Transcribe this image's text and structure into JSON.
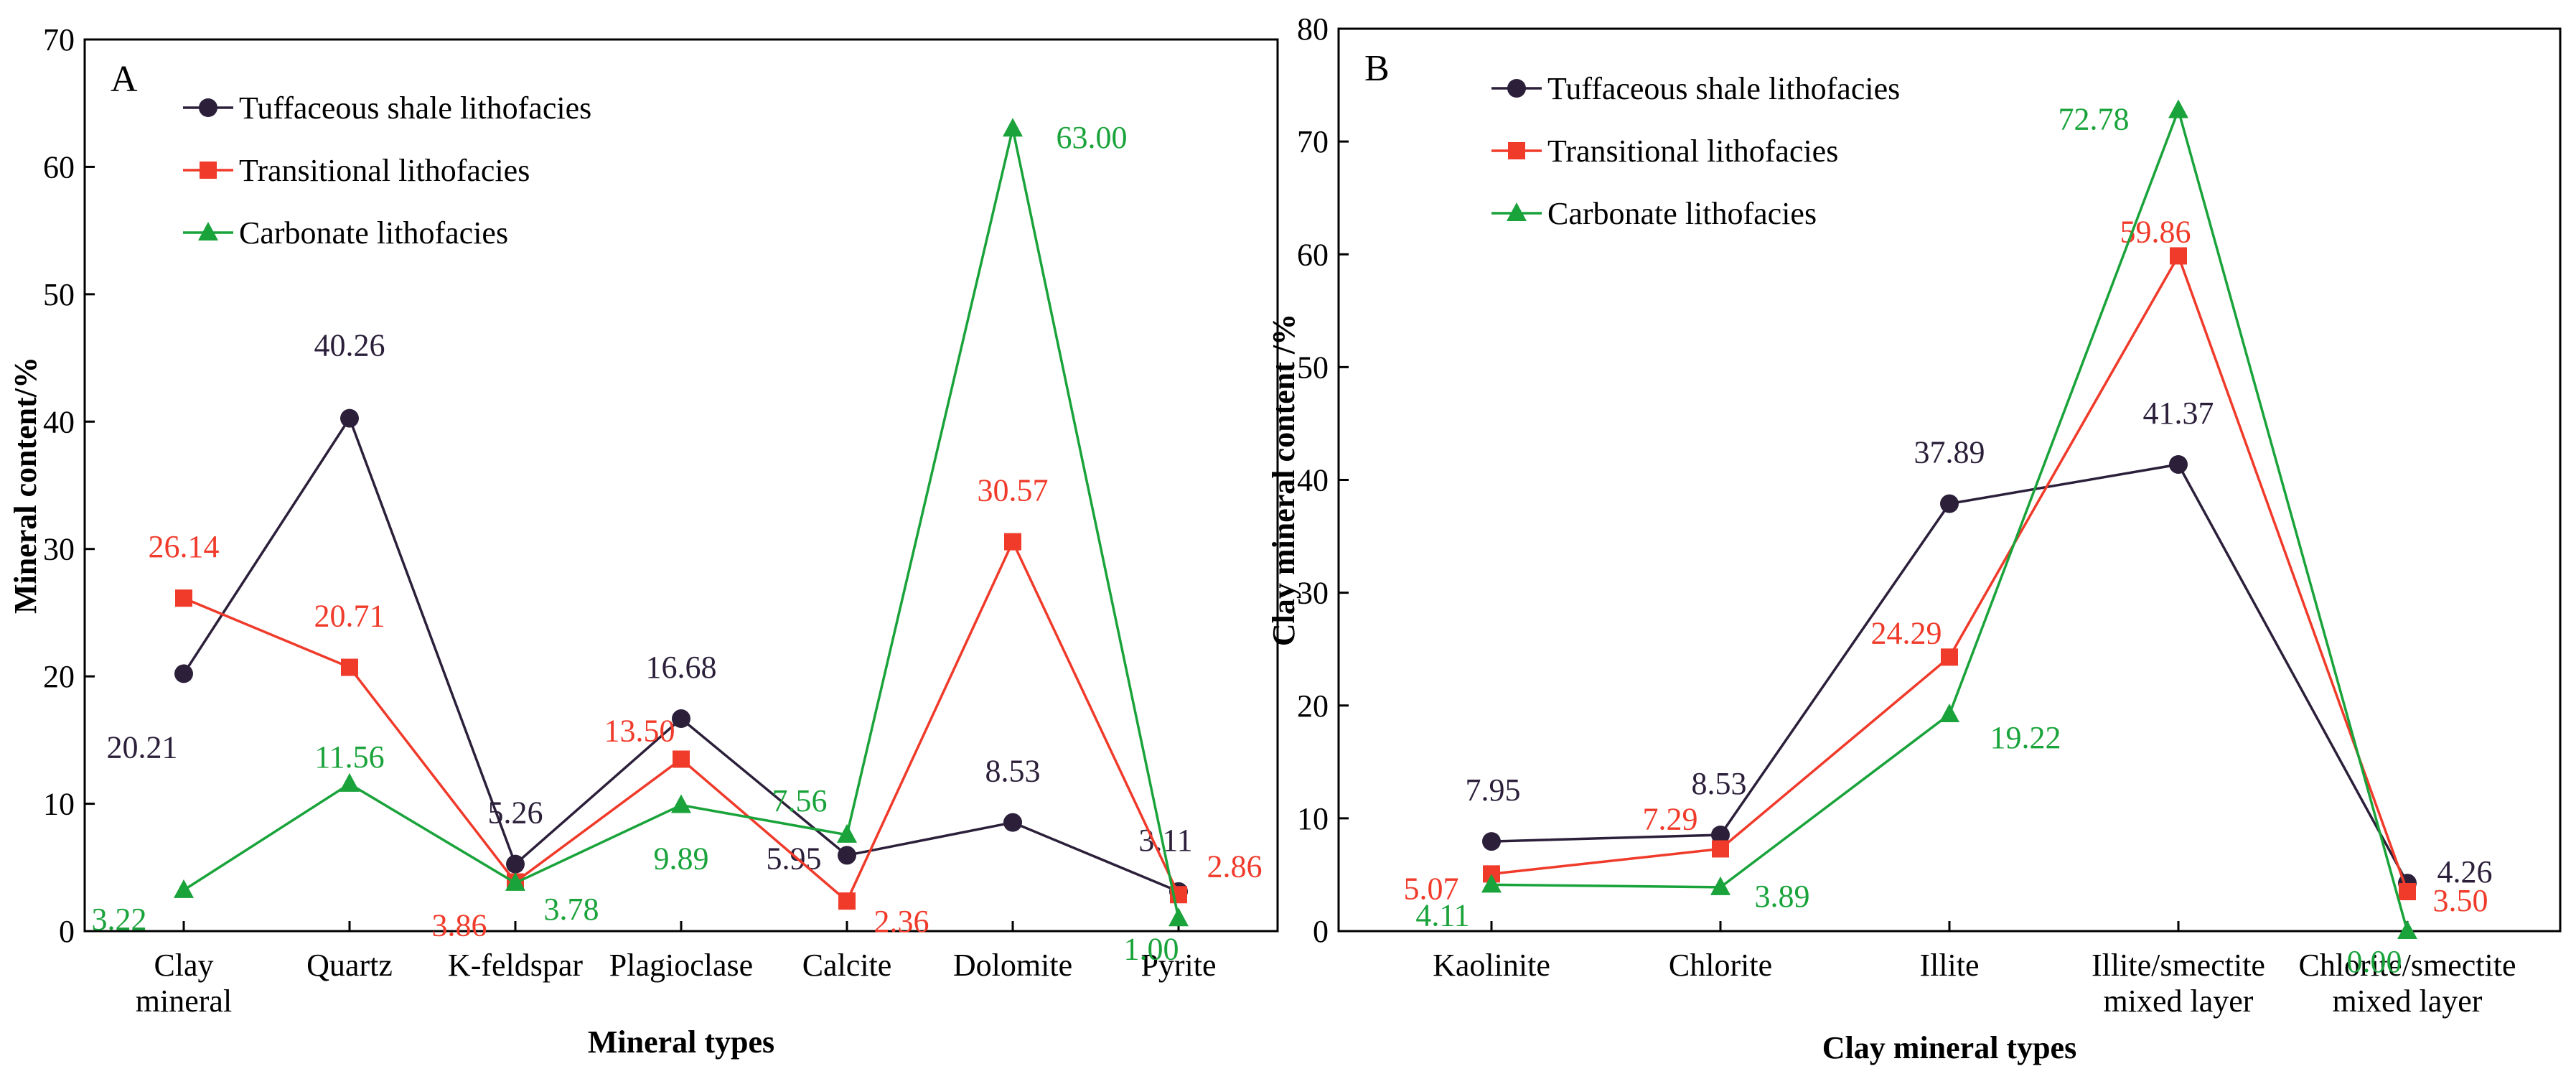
{
  "colors": {
    "tuffaceous": "#2b1f3a",
    "transitional": "#f03a2a",
    "carbonate": "#19a33a",
    "axis": "#000000"
  },
  "legend": [
    "Tuffaceous shale lithofacies",
    "Transitional lithofacies",
    "Carbonate lithofacies"
  ],
  "chart_data": [
    {
      "type": "line",
      "panel_label": "A",
      "categories": [
        [
          "Clay",
          "mineral"
        ],
        [
          "Quartz"
        ],
        [
          "K-feldspar"
        ],
        [
          "Plagioclase"
        ],
        [
          "Calcite"
        ],
        [
          "Dolomite"
        ],
        [
          "Pyrite"
        ]
      ],
      "xlabel": "Mineral types",
      "ylabel": "Mineral content/%",
      "ylim": [
        0,
        70
      ],
      "yticks": [
        0,
        10,
        20,
        30,
        40,
        50,
        60,
        70
      ],
      "legend_placement": "top-left",
      "series": [
        {
          "name": "Tuffaceous shale lithofacies",
          "marker": "circle",
          "color": "#2b1f3a",
          "values": [
            20.21,
            40.26,
            5.26,
            16.68,
            5.95,
            8.53,
            3.11
          ],
          "labels": [
            "20.21",
            "40.26",
            "5.26",
            "16.68",
            "5.95",
            "8.53",
            "3.11"
          ]
        },
        {
          "name": "Transitional lithofacies",
          "marker": "square",
          "color": "#f03a2a",
          "values": [
            26.14,
            20.71,
            3.86,
            13.5,
            2.36,
            30.57,
            2.86
          ],
          "labels": [
            "26.14",
            "20.71",
            "3.86",
            "13.50",
            "2.36",
            "30.57",
            "2.86"
          ]
        },
        {
          "name": "Carbonate lithofacies",
          "marker": "triangle",
          "color": "#19a33a",
          "values": [
            3.22,
            11.56,
            3.78,
            9.89,
            7.56,
            63.0,
            1.0
          ],
          "labels": [
            "3.22",
            "11.56",
            "3.78",
            "9.89",
            "7.56",
            "63.00",
            "1.00"
          ]
        }
      ]
    },
    {
      "type": "line",
      "panel_label": "B",
      "categories": [
        [
          "Kaolinite"
        ],
        [
          "Chlorite"
        ],
        [
          "Illite"
        ],
        [
          "Illite/smectite",
          "mixed layer"
        ],
        [
          "Chlorite/smectite",
          "mixed layer"
        ]
      ],
      "xlabel": "Clay mineral types",
      "ylabel": "Clay mineral content /%",
      "ylim": [
        0,
        80
      ],
      "yticks": [
        0,
        10,
        20,
        30,
        40,
        50,
        60,
        70,
        80
      ],
      "legend_placement": "top-left",
      "series": [
        {
          "name": "Tuffaceous shale lithofacies",
          "marker": "circle",
          "color": "#2b1f3a",
          "values": [
            7.95,
            8.53,
            37.89,
            41.37,
            4.26
          ],
          "labels": [
            "7.95",
            "8.53",
            "37.89",
            "41.37",
            "4.26"
          ]
        },
        {
          "name": "Transitional lithofacies",
          "marker": "square",
          "color": "#f03a2a",
          "values": [
            5.07,
            7.29,
            24.29,
            59.86,
            3.5
          ],
          "labels": [
            "5.07",
            "7.29",
            "24.29",
            "59.86",
            "3.50"
          ]
        },
        {
          "name": "Carbonate lithofacies",
          "marker": "triangle",
          "color": "#19a33a",
          "values": [
            4.11,
            3.89,
            19.22,
            72.78,
            0.0
          ],
          "labels": [
            "4.11",
            "3.89",
            "19.22",
            "72.78",
            "0.00"
          ]
        }
      ]
    }
  ]
}
